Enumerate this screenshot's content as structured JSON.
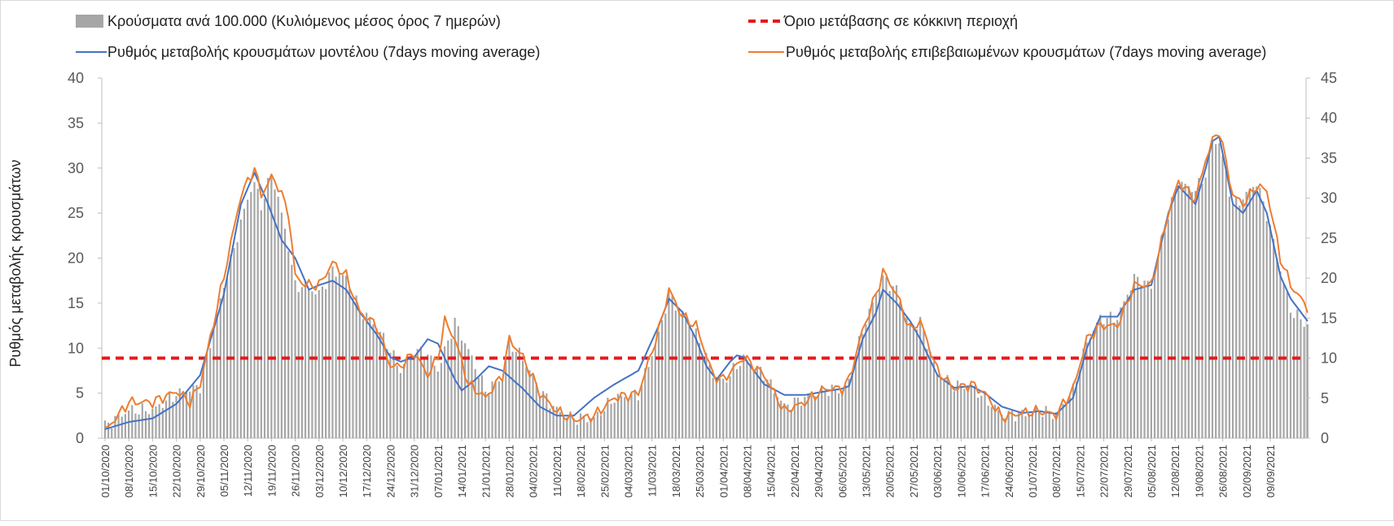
{
  "chart_data": {
    "type": "bar+line",
    "ylabel": "Ρυθμός μεταβολής κρουσμάτων",
    "ylim_left": [
      0,
      40
    ],
    "ylim_right": [
      0,
      45
    ],
    "yticks_left": [
      0,
      5,
      10,
      15,
      20,
      25,
      30,
      35,
      40
    ],
    "yticks_right": [
      0,
      5,
      10,
      15,
      20,
      25,
      30,
      35,
      40,
      45
    ],
    "x_tick_labels": [
      "01/10/2020",
      "08/10/2020",
      "15/10/2020",
      "22/10/2020",
      "29/10/2020",
      "05/11/2020",
      "12/11/2020",
      "19/11/2020",
      "26/11/2020",
      "03/12/2020",
      "10/12/2020",
      "17/12/2020",
      "24/12/2020",
      "31/12/2020",
      "07/01/2021",
      "14/01/2021",
      "21/01/2021",
      "28/01/2021",
      "04/02/2021",
      "11/02/2021",
      "18/02/2021",
      "25/02/2021",
      "04/03/2021",
      "11/03/2021",
      "18/03/2021",
      "25/03/2021",
      "01/04/2021",
      "08/04/2021",
      "15/04/2021",
      "22/04/2021",
      "29/04/2021",
      "06/05/2021",
      "13/05/2021",
      "20/05/2021",
      "27/05/2021",
      "03/06/2021",
      "10/06/2021",
      "17/06/2021",
      "24/06/2021",
      "01/07/2021",
      "08/07/2021",
      "15/07/2021",
      "22/07/2021",
      "29/07/2021",
      "05/08/2021",
      "12/08/2021",
      "19/08/2021",
      "26/08/2021",
      "02/09/2021",
      "09/09/2021"
    ],
    "legend_position": "top",
    "grid": false,
    "threshold": {
      "name": "Όριο μετάβασης σε κόκκινη περιοχή",
      "value": 10,
      "axis": "right",
      "color": "#e31a1c"
    },
    "series": [
      {
        "name": "Κρούσματα ανά 100.000 (Κυλιόμενος μέσος όρος 7 ημερών)",
        "kind": "bar",
        "axis": "right",
        "color": "#a6a6a6",
        "keyframes": [
          [
            0,
            1.5
          ],
          [
            7,
            3.5
          ],
          [
            14,
            3.5
          ],
          [
            21,
            5.5
          ],
          [
            28,
            6.5
          ],
          [
            35,
            19
          ],
          [
            42,
            30
          ],
          [
            44,
            32
          ],
          [
            46,
            29
          ],
          [
            49,
            33
          ],
          [
            51,
            30
          ],
          [
            54,
            24
          ],
          [
            56,
            19
          ],
          [
            59,
            19
          ],
          [
            63,
            18
          ],
          [
            67,
            21
          ],
          [
            71,
            20
          ],
          [
            75,
            16
          ],
          [
            80,
            14
          ],
          [
            84,
            11
          ],
          [
            87,
            8.5
          ],
          [
            91,
            11
          ],
          [
            95,
            10.5
          ],
          [
            98,
            8.5
          ],
          [
            103,
            14.5
          ],
          [
            107,
            11
          ],
          [
            112,
            6
          ],
          [
            117,
            7.5
          ],
          [
            119,
            12
          ],
          [
            123,
            10
          ],
          [
            128,
            6
          ],
          [
            133,
            3.5
          ],
          [
            138,
            2.5
          ],
          [
            144,
            2.5
          ],
          [
            150,
            5
          ],
          [
            157,
            5.5
          ],
          [
            163,
            13
          ],
          [
            166,
            18
          ],
          [
            170,
            15.5
          ],
          [
            174,
            13
          ],
          [
            179,
            8
          ],
          [
            182,
            7
          ],
          [
            188,
            10
          ],
          [
            194,
            8
          ],
          [
            200,
            4
          ],
          [
            206,
            5
          ],
          [
            212,
            6
          ],
          [
            217,
            6
          ],
          [
            219,
            7
          ],
          [
            223,
            13.5
          ],
          [
            227,
            18
          ],
          [
            229,
            20
          ],
          [
            233,
            18.5
          ],
          [
            237,
            14
          ],
          [
            240,
            14.5
          ],
          [
            245,
            8
          ],
          [
            250,
            6.5
          ],
          [
            255,
            6.5
          ],
          [
            259,
            5
          ],
          [
            264,
            3
          ],
          [
            270,
            3
          ],
          [
            275,
            3.5
          ],
          [
            280,
            3
          ],
          [
            285,
            6
          ],
          [
            289,
            12
          ],
          [
            293,
            15
          ],
          [
            298,
            15
          ],
          [
            303,
            20
          ],
          [
            308,
            19
          ],
          [
            313,
            28
          ],
          [
            316,
            32
          ],
          [
            321,
            31
          ],
          [
            324,
            33
          ],
          [
            326,
            37
          ],
          [
            328,
            37
          ],
          [
            332,
            29
          ],
          [
            335,
            30
          ],
          [
            339,
            32
          ],
          [
            342,
            28
          ],
          [
            346,
            21
          ],
          [
            349,
            16
          ],
          [
            353,
            14.5
          ],
          [
            354,
            14
          ]
        ]
      },
      {
        "name": "Ρυθμός μεταβολής κρουσμάτων μοντέλου (7days moving average)",
        "kind": "line",
        "axis": "left",
        "color": "#4472c4",
        "keyframes": [
          [
            0,
            1
          ],
          [
            7,
            1.8
          ],
          [
            14,
            2.2
          ],
          [
            21,
            3.8
          ],
          [
            28,
            7
          ],
          [
            35,
            16
          ],
          [
            40,
            26
          ],
          [
            44,
            29.5
          ],
          [
            48,
            26
          ],
          [
            52,
            22
          ],
          [
            56,
            20
          ],
          [
            60,
            16.5
          ],
          [
            63,
            17
          ],
          [
            67,
            17.5
          ],
          [
            71,
            16.5
          ],
          [
            75,
            14
          ],
          [
            80,
            11.5
          ],
          [
            84,
            9
          ],
          [
            87,
            8.5
          ],
          [
            91,
            9
          ],
          [
            95,
            11
          ],
          [
            98,
            10.5
          ],
          [
            103,
            6.5
          ],
          [
            105,
            5.3
          ],
          [
            109,
            6.5
          ],
          [
            113,
            8
          ],
          [
            117,
            7.5
          ],
          [
            123,
            5.5
          ],
          [
            128,
            3.5
          ],
          [
            133,
            2.5
          ],
          [
            138,
            2.5
          ],
          [
            144,
            4.5
          ],
          [
            150,
            6
          ],
          [
            157,
            7.5
          ],
          [
            163,
            12.5
          ],
          [
            166,
            15.5
          ],
          [
            170,
            14
          ],
          [
            174,
            11
          ],
          [
            177,
            8
          ],
          [
            180,
            6.5
          ],
          [
            184,
            8.5
          ],
          [
            186,
            9.2
          ],
          [
            188,
            9
          ],
          [
            194,
            6
          ],
          [
            200,
            4.8
          ],
          [
            206,
            4.8
          ],
          [
            212,
            5.2
          ],
          [
            217,
            5.5
          ],
          [
            219,
            5.8
          ],
          [
            223,
            11
          ],
          [
            227,
            14
          ],
          [
            229,
            16.5
          ],
          [
            233,
            15
          ],
          [
            237,
            13
          ],
          [
            240,
            11
          ],
          [
            245,
            7
          ],
          [
            250,
            5.6
          ],
          [
            255,
            5.8
          ],
          [
            259,
            5
          ],
          [
            264,
            3.5
          ],
          [
            270,
            2.8
          ],
          [
            275,
            3
          ],
          [
            280,
            2.7
          ],
          [
            285,
            4.5
          ],
          [
            289,
            10
          ],
          [
            293,
            13.5
          ],
          [
            298,
            13.5
          ],
          [
            303,
            16.5
          ],
          [
            308,
            17
          ],
          [
            313,
            25
          ],
          [
            316,
            28
          ],
          [
            321,
            26
          ],
          [
            324,
            30
          ],
          [
            326,
            33
          ],
          [
            328,
            33.5
          ],
          [
            332,
            26
          ],
          [
            335,
            25
          ],
          [
            339,
            27.5
          ],
          [
            342,
            25
          ],
          [
            346,
            18
          ],
          [
            349,
            15.5
          ],
          [
            353,
            13.5
          ],
          [
            354,
            13
          ]
        ]
      },
      {
        "name": "Ρυθμός μεταβολής επιβεβαιωμένων κρουσμάτων (7days moving average)",
        "kind": "line",
        "axis": "left",
        "color": "#ed7d31",
        "keyframes": [
          [
            0,
            0.8
          ],
          [
            7,
            4
          ],
          [
            14,
            4
          ],
          [
            21,
            5.2
          ],
          [
            25,
            4
          ],
          [
            28,
            6
          ],
          [
            35,
            18
          ],
          [
            40,
            27
          ],
          [
            44,
            30
          ],
          [
            46,
            27
          ],
          [
            49,
            29
          ],
          [
            51,
            28
          ],
          [
            54,
            25
          ],
          [
            56,
            18
          ],
          [
            59,
            17
          ],
          [
            63,
            17
          ],
          [
            67,
            19.5
          ],
          [
            71,
            18
          ],
          [
            75,
            14
          ],
          [
            80,
            12.5
          ],
          [
            84,
            8
          ],
          [
            87,
            8
          ],
          [
            91,
            9.5
          ],
          [
            95,
            7
          ],
          [
            98,
            9
          ],
          [
            100,
            13
          ],
          [
            103,
            11
          ],
          [
            107,
            6
          ],
          [
            112,
            4.5
          ],
          [
            117,
            7
          ],
          [
            119,
            11
          ],
          [
            123,
            9
          ],
          [
            128,
            5
          ],
          [
            133,
            3
          ],
          [
            138,
            2
          ],
          [
            144,
            2.5
          ],
          [
            150,
            4.5
          ],
          [
            157,
            5
          ],
          [
            163,
            12
          ],
          [
            166,
            16.5
          ],
          [
            170,
            13.5
          ],
          [
            174,
            12.5
          ],
          [
            179,
            7
          ],
          [
            182,
            6.5
          ],
          [
            188,
            9
          ],
          [
            194,
            7
          ],
          [
            200,
            3
          ],
          [
            206,
            4
          ],
          [
            212,
            5.5
          ],
          [
            217,
            5.5
          ],
          [
            219,
            6.5
          ],
          [
            223,
            12
          ],
          [
            227,
            16
          ],
          [
            229,
            18.5
          ],
          [
            233,
            16
          ],
          [
            237,
            12
          ],
          [
            240,
            13
          ],
          [
            245,
            7.5
          ],
          [
            250,
            5.5
          ],
          [
            255,
            6
          ],
          [
            259,
            5
          ],
          [
            264,
            2.3
          ],
          [
            270,
            2.8
          ],
          [
            275,
            3
          ],
          [
            280,
            2.6
          ],
          [
            285,
            5.5
          ],
          [
            289,
            11
          ],
          [
            293,
            12.5
          ],
          [
            298,
            12.5
          ],
          [
            303,
            17
          ],
          [
            308,
            17
          ],
          [
            313,
            25
          ],
          [
            316,
            28.5
          ],
          [
            321,
            26.5
          ],
          [
            324,
            31
          ],
          [
            326,
            33
          ],
          [
            328,
            34.2
          ],
          [
            332,
            27
          ],
          [
            335,
            26
          ],
          [
            339,
            28
          ],
          [
            342,
            27.5
          ],
          [
            346,
            20
          ],
          [
            349,
            17
          ],
          [
            353,
            15
          ],
          [
            354,
            14.5
          ]
        ]
      }
    ]
  },
  "legend": {
    "bars": "Κρούσματα ανά 100.000 (Κυλιόμενος μέσος όρος 7 ημερών)",
    "threshold": "Όριο μετάβασης σε κόκκινη περιοχή",
    "model": "Ρυθμός μεταβολής κρουσμάτων μοντέλου (7days moving average)",
    "confirmed": "Ρυθμός μεταβολής επιβεβαιωμένων κρουσμάτων (7days moving average)"
  }
}
